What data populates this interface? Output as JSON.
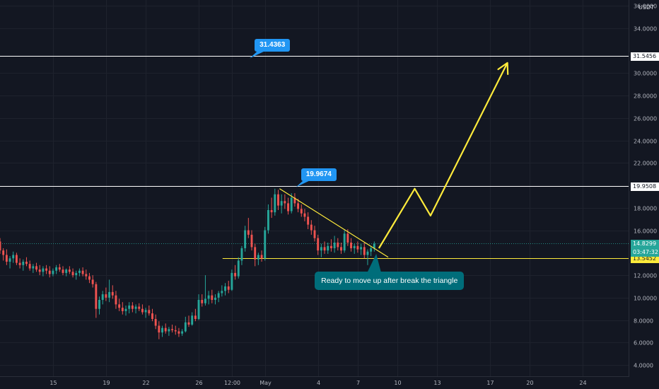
{
  "chart_data": {
    "type": "candlestick",
    "currency": "USDT",
    "y_ticks": [
      {
        "value": 4,
        "label": "4.0000"
      },
      {
        "value": 6,
        "label": "6.0000"
      },
      {
        "value": 8,
        "label": "8.0000"
      },
      {
        "value": 10,
        "label": "10.0000"
      },
      {
        "value": 12,
        "label": "12.0000"
      },
      {
        "value": 16,
        "label": "16.0000"
      },
      {
        "value": 18,
        "label": "18.0000"
      },
      {
        "value": 22,
        "label": "22.0000"
      },
      {
        "value": 24,
        "label": "24.0000"
      },
      {
        "value": 26,
        "label": "26.0000"
      },
      {
        "value": 28,
        "label": "28.0000"
      },
      {
        "value": 30,
        "label": "30.0000"
      },
      {
        "value": 34,
        "label": "34.0000"
      },
      {
        "value": 36,
        "label": "36.0000"
      }
    ],
    "ylim": [
      3,
      36.5
    ],
    "x_ticks": [
      {
        "day": 15,
        "label": "15"
      },
      {
        "day": 19,
        "label": "19"
      },
      {
        "day": 22,
        "label": "22"
      },
      {
        "day": 26,
        "label": "26"
      },
      {
        "day": 28.5,
        "label": "12:00"
      },
      {
        "day": 31,
        "label": "May"
      },
      {
        "day": 35,
        "label": "4"
      },
      {
        "day": 38,
        "label": "7"
      },
      {
        "day": 41,
        "label": "10"
      },
      {
        "day": 44,
        "label": "13"
      },
      {
        "day": 48,
        "label": "17"
      },
      {
        "day": 51,
        "label": "20"
      },
      {
        "day": 55,
        "label": "24"
      }
    ],
    "xlim": [
      11,
      58.5
    ],
    "horizontal_levels": [
      {
        "value": 31.5456,
        "label": "31.5456",
        "color": "#ffffff"
      },
      {
        "value": 19.9508,
        "label": "19.9508",
        "color": "#ffffff"
      },
      {
        "value": 13.5452,
        "label": "13.5452",
        "color": "#ffeb3b"
      }
    ],
    "current_price": {
      "label": "14.8299",
      "countdown": "03:47:32",
      "color": "#26a69a"
    },
    "callouts": [
      {
        "label": "31.4363",
        "day": 29.9,
        "value": 31.4363
      },
      {
        "label": "19.9674",
        "day": 33.4,
        "value": 19.9674
      }
    ],
    "note": "Ready to move up after break the triangle",
    "triangle": [
      {
        "day": 32.1,
        "value": 19.7
      },
      {
        "day": 40.3,
        "value": 13.6
      }
    ],
    "projection": [
      {
        "day": 39.6,
        "value": 14.4
      },
      {
        "day": 42.3,
        "value": 19.7
      },
      {
        "day": 43.5,
        "value": 17.3
      },
      {
        "day": 49.3,
        "value": 30.9
      }
    ],
    "candles": [
      [
        11.0,
        15.0,
        15.3,
        13.9,
        14.2
      ],
      [
        11.25,
        14.2,
        14.4,
        13.3,
        13.8
      ],
      [
        11.5,
        13.8,
        14.3,
        12.9,
        13.2
      ],
      [
        11.75,
        13.2,
        13.7,
        12.6,
        13.5
      ],
      [
        12.0,
        13.5,
        14.1,
        13.1,
        13.8
      ],
      [
        12.25,
        13.8,
        14.0,
        12.9,
        13.1
      ],
      [
        12.5,
        13.1,
        13.5,
        12.6,
        12.9
      ],
      [
        12.75,
        12.9,
        13.4,
        12.4,
        13.2
      ],
      [
        13.0,
        13.2,
        13.6,
        12.8,
        13.0
      ],
      [
        13.25,
        13.0,
        13.3,
        12.4,
        12.6
      ],
      [
        13.5,
        12.6,
        13.0,
        12.2,
        12.8
      ],
      [
        13.75,
        12.8,
        13.1,
        12.3,
        12.5
      ],
      [
        14.0,
        12.5,
        12.9,
        12.0,
        12.3
      ],
      [
        14.25,
        12.3,
        12.8,
        11.9,
        12.6
      ],
      [
        14.5,
        12.6,
        12.9,
        12.1,
        12.4
      ],
      [
        14.75,
        12.4,
        12.8,
        11.8,
        12.1
      ],
      [
        15.0,
        12.1,
        12.6,
        11.9,
        12.4
      ],
      [
        15.25,
        12.4,
        12.9,
        12.1,
        12.7
      ],
      [
        15.5,
        12.7,
        13.0,
        12.3,
        12.5
      ],
      [
        15.75,
        12.5,
        12.8,
        12.0,
        12.2
      ],
      [
        16.0,
        12.2,
        12.6,
        11.9,
        12.5
      ],
      [
        16.25,
        12.5,
        12.8,
        12.1,
        12.3
      ],
      [
        16.5,
        12.3,
        12.6,
        11.8,
        12.0
      ],
      [
        16.75,
        12.0,
        12.4,
        11.6,
        12.2
      ],
      [
        17.0,
        12.2,
        12.6,
        11.9,
        12.4
      ],
      [
        17.25,
        12.4,
        12.7,
        11.9,
        12.1
      ],
      [
        17.5,
        12.1,
        12.5,
        11.6,
        11.9
      ],
      [
        17.75,
        11.9,
        12.2,
        11.3,
        11.6
      ],
      [
        18.0,
        11.6,
        12.0,
        10.9,
        11.2
      ],
      [
        18.25,
        11.2,
        11.4,
        8.2,
        9.0
      ],
      [
        18.5,
        9.0,
        10.1,
        8.5,
        9.8
      ],
      [
        18.75,
        9.8,
        10.6,
        9.4,
        10.3
      ],
      [
        19.0,
        10.3,
        10.9,
        9.7,
        10.0
      ],
      [
        19.25,
        10.0,
        11.6,
        9.6,
        10.5
      ],
      [
        19.5,
        10.5,
        11.1,
        9.9,
        10.2
      ],
      [
        19.75,
        10.2,
        10.6,
        9.0,
        9.4
      ],
      [
        20.0,
        9.4,
        9.9,
        8.8,
        9.1
      ],
      [
        20.25,
        9.1,
        9.6,
        8.5,
        8.8
      ],
      [
        20.5,
        8.8,
        9.3,
        8.4,
        9.0
      ],
      [
        20.75,
        9.0,
        9.6,
        8.6,
        9.3
      ],
      [
        21.0,
        9.3,
        9.6,
        8.7,
        9.0
      ],
      [
        21.25,
        9.0,
        9.4,
        8.6,
        9.2
      ],
      [
        21.5,
        9.2,
        9.5,
        8.8,
        9.0
      ],
      [
        21.75,
        9.0,
        9.4,
        8.5,
        8.7
      ],
      [
        22.0,
        8.7,
        9.1,
        8.2,
        8.9
      ],
      [
        22.25,
        8.9,
        9.3,
        8.4,
        8.6
      ],
      [
        22.5,
        8.6,
        9.0,
        7.9,
        8.1
      ],
      [
        22.75,
        8.1,
        8.5,
        7.2,
        7.5
      ],
      [
        23.0,
        7.5,
        7.9,
        6.3,
        6.9
      ],
      [
        23.25,
        6.9,
        7.5,
        6.5,
        7.3
      ],
      [
        23.5,
        7.3,
        7.7,
        6.8,
        7.0
      ],
      [
        23.75,
        7.0,
        7.4,
        6.6,
        7.2
      ],
      [
        24.0,
        7.2,
        7.6,
        6.9,
        7.1
      ],
      [
        24.25,
        7.1,
        7.5,
        6.7,
        7.0
      ],
      [
        24.5,
        7.0,
        7.3,
        6.5,
        6.8
      ],
      [
        24.75,
        6.8,
        7.2,
        6.6,
        7.0
      ],
      [
        25.0,
        7.0,
        8.3,
        6.9,
        7.8
      ],
      [
        25.25,
        7.8,
        8.4,
        7.4,
        7.6
      ],
      [
        25.5,
        7.6,
        8.7,
        7.5,
        8.4
      ],
      [
        25.75,
        8.4,
        9.0,
        7.9,
        8.1
      ],
      [
        26.0,
        8.1,
        10.3,
        8.0,
        9.8
      ],
      [
        26.25,
        9.8,
        10.3,
        9.2,
        9.5
      ],
      [
        26.5,
        9.5,
        12.0,
        9.3,
        9.9
      ],
      [
        26.75,
        9.9,
        10.6,
        9.4,
        10.2
      ],
      [
        27.0,
        10.2,
        10.7,
        9.5,
        9.8
      ],
      [
        27.25,
        9.8,
        10.3,
        9.4,
        10.0
      ],
      [
        27.5,
        10.0,
        10.6,
        9.6,
        10.4
      ],
      [
        27.75,
        10.4,
        11.1,
        10.1,
        10.6
      ],
      [
        28.0,
        10.6,
        11.3,
        10.2,
        11.0
      ],
      [
        28.25,
        11.0,
        11.5,
        10.4,
        10.7
      ],
      [
        28.5,
        10.7,
        12.5,
        10.6,
        12.2
      ],
      [
        28.75,
        12.2,
        12.9,
        11.6,
        11.9
      ],
      [
        29.0,
        11.9,
        13.6,
        11.7,
        13.3
      ],
      [
        29.25,
        13.3,
        14.6,
        12.9,
        14.4
      ],
      [
        29.5,
        14.4,
        16.4,
        14.1,
        16.0
      ],
      [
        29.75,
        16.0,
        17.1,
        15.3,
        15.6
      ],
      [
        30.0,
        15.6,
        16.0,
        14.2,
        14.5
      ],
      [
        30.25,
        14.5,
        14.8,
        12.8,
        13.4
      ],
      [
        30.5,
        13.4,
        14.0,
        12.9,
        13.8
      ],
      [
        30.75,
        13.8,
        14.2,
        13.2,
        13.5
      ],
      [
        31.0,
        13.5,
        16.3,
        13.3,
        16.0
      ],
      [
        31.25,
        16.0,
        18.3,
        15.7,
        17.8
      ],
      [
        31.5,
        17.8,
        18.9,
        17.1,
        17.6
      ],
      [
        31.75,
        17.6,
        19.7,
        17.3,
        19.2
      ],
      [
        32.0,
        19.2,
        19.6,
        17.8,
        18.2
      ],
      [
        32.25,
        18.2,
        19.2,
        17.5,
        18.6
      ],
      [
        32.5,
        18.6,
        19.2,
        17.9,
        18.4
      ],
      [
        32.75,
        18.4,
        18.9,
        17.4,
        17.7
      ],
      [
        33.0,
        17.7,
        19.3,
        17.5,
        18.9
      ],
      [
        33.25,
        18.9,
        19.3,
        18.1,
        18.4
      ],
      [
        33.5,
        18.4,
        18.8,
        17.6,
        17.9
      ],
      [
        33.75,
        17.9,
        18.3,
        17.2,
        17.5
      ],
      [
        34.0,
        17.5,
        17.9,
        16.8,
        17.2
      ],
      [
        34.25,
        17.2,
        17.6,
        16.1,
        16.5
      ],
      [
        34.5,
        16.5,
        16.9,
        15.6,
        16.0
      ],
      [
        34.75,
        16.0,
        16.4,
        15.0,
        15.3
      ],
      [
        35.0,
        15.3,
        15.6,
        13.8,
        14.2
      ],
      [
        35.25,
        14.2,
        14.8,
        13.6,
        14.5
      ],
      [
        35.5,
        14.5,
        15.0,
        13.9,
        14.2
      ],
      [
        35.75,
        14.2,
        14.9,
        13.9,
        14.6
      ],
      [
        36.0,
        14.6,
        15.2,
        14.1,
        14.4
      ],
      [
        36.25,
        14.4,
        15.5,
        14.0,
        14.9
      ],
      [
        36.5,
        14.9,
        15.3,
        14.2,
        14.5
      ],
      [
        36.75,
        14.5,
        14.9,
        13.9,
        14.2
      ],
      [
        37.0,
        14.2,
        16.0,
        14.0,
        15.7
      ],
      [
        37.25,
        15.7,
        16.1,
        14.6,
        14.9
      ],
      [
        37.5,
        14.9,
        15.3,
        14.1,
        14.4
      ],
      [
        37.75,
        14.4,
        14.8,
        13.9,
        14.6
      ],
      [
        38.0,
        14.6,
        15.0,
        14.0,
        14.3
      ],
      [
        38.25,
        14.3,
        14.8,
        13.8,
        14.5
      ],
      [
        38.5,
        14.5,
        14.9,
        13.5,
        13.8
      ],
      [
        38.75,
        13.8,
        14.3,
        12.9,
        14.1
      ],
      [
        39.0,
        14.1,
        14.6,
        13.7,
        14.4
      ],
      [
        39.25,
        14.4,
        15.0,
        14.1,
        14.8
      ]
    ]
  }
}
